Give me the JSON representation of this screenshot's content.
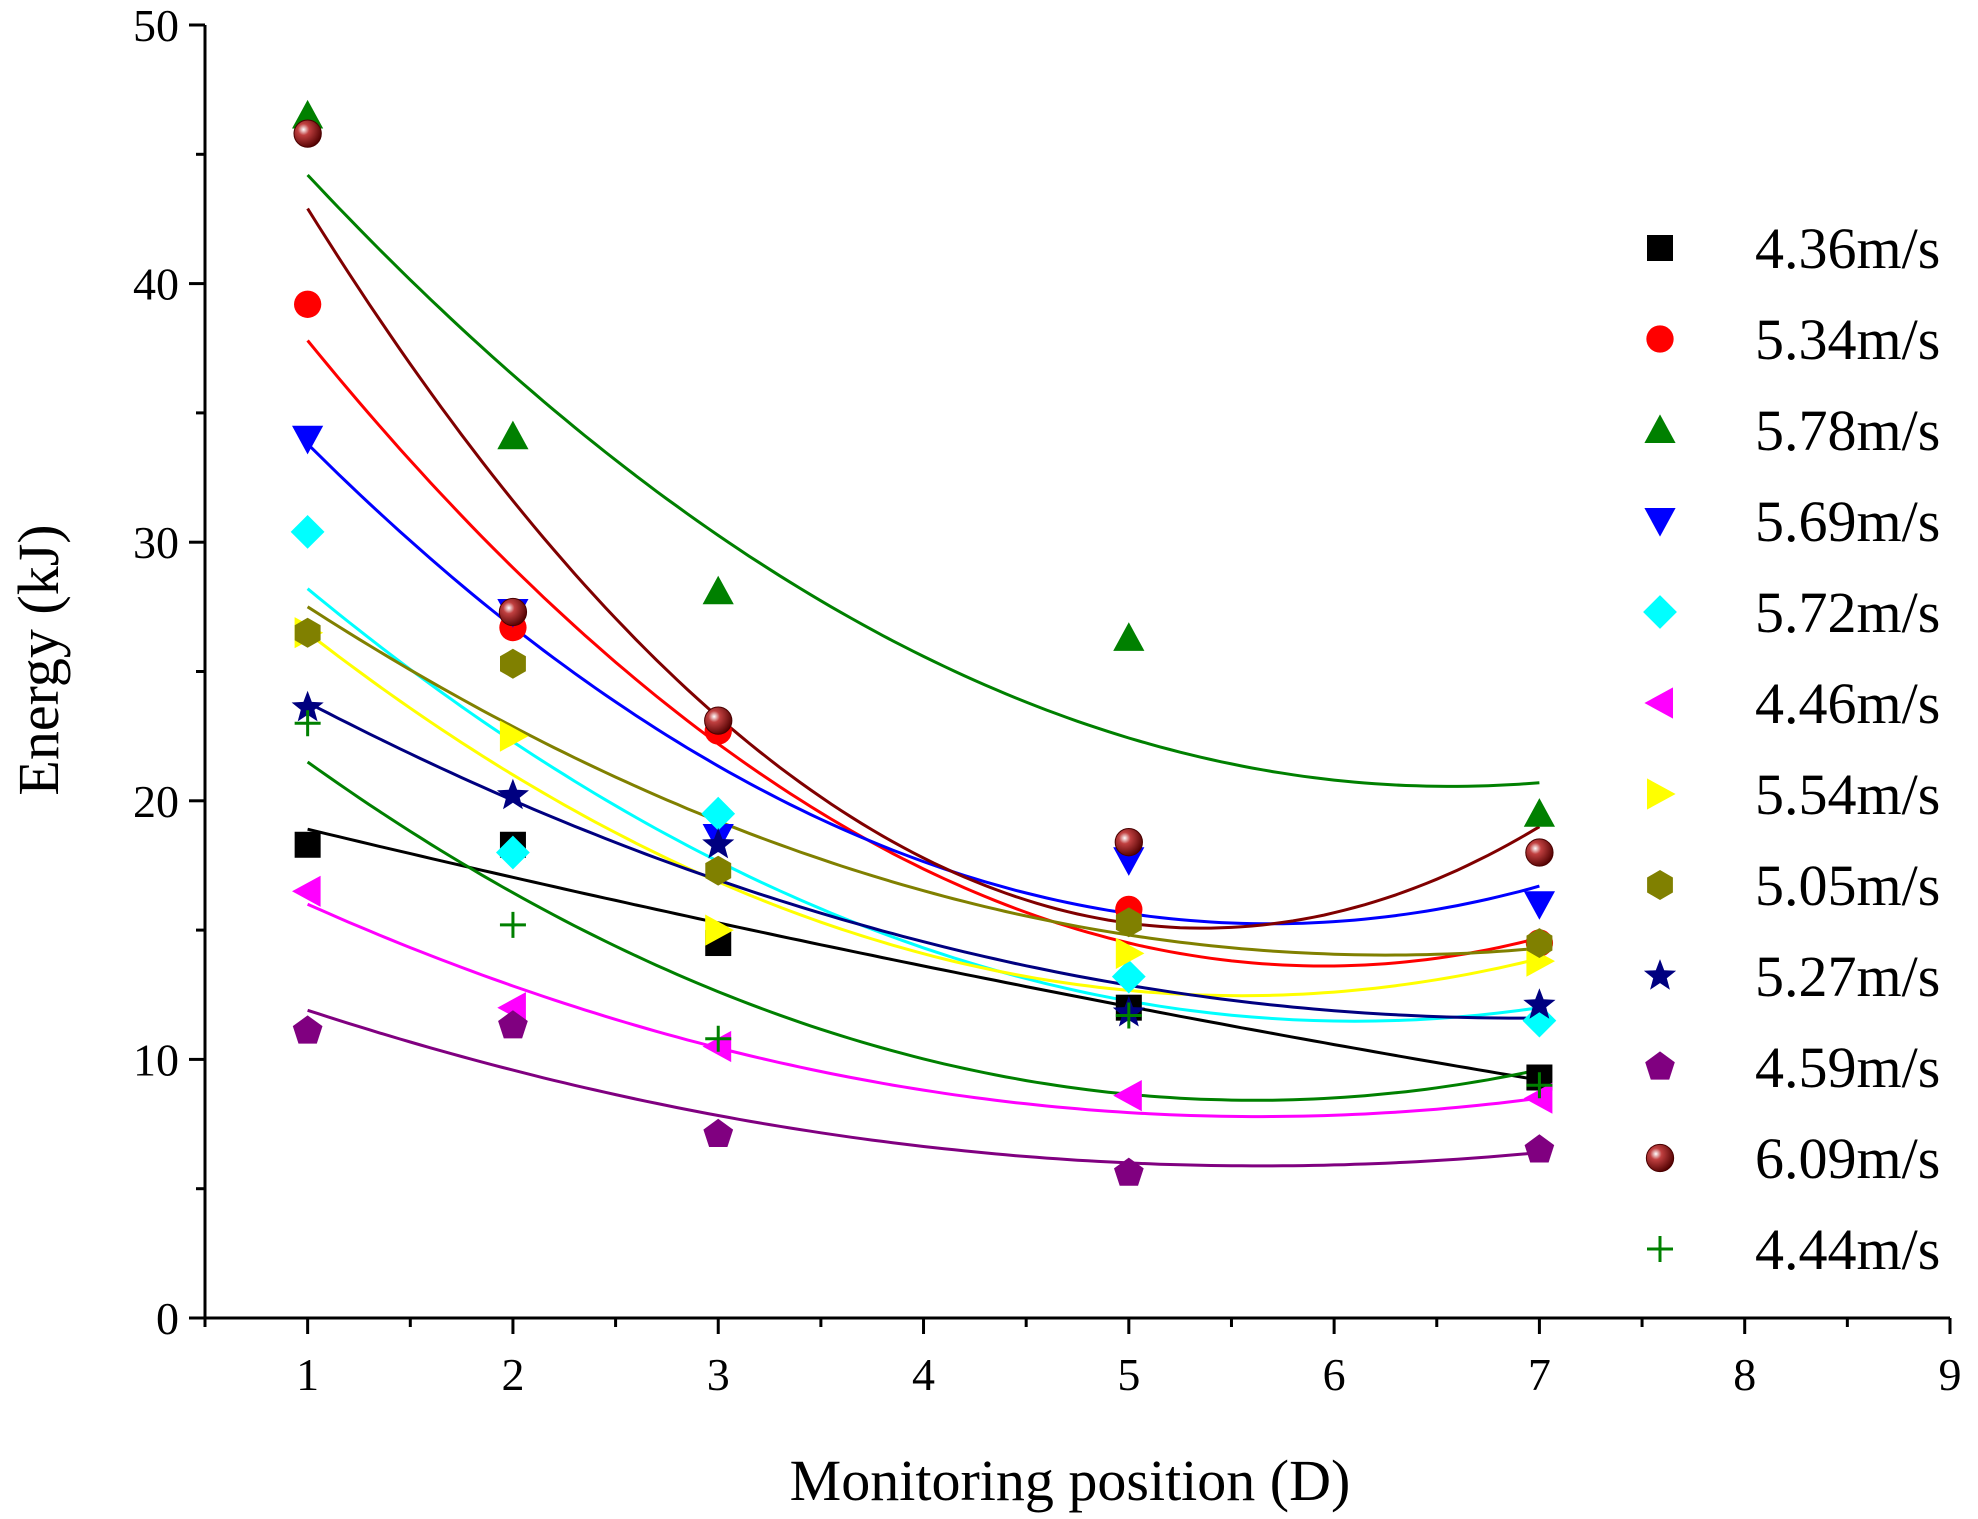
{
  "chart_data": {
    "type": "scatter",
    "title": "",
    "xlabel": "Monitoring position (D)",
    "ylabel": "Energy (kJ)",
    "xlim": [
      0.5,
      9
    ],
    "ylim": [
      0,
      50
    ],
    "x_ticks": [
      1,
      2,
      3,
      4,
      5,
      6,
      7,
      8,
      9
    ],
    "y_ticks": [
      0,
      10,
      20,
      30,
      40,
      50
    ],
    "grid": false,
    "legend_position": "right",
    "fit": "polynomial-2",
    "x": [
      1,
      2,
      3,
      5,
      7
    ],
    "series": [
      {
        "name": "4.36m/s",
        "color": "#000000",
        "marker": "square",
        "values": [
          18.3,
          18.3,
          14.5,
          12.0,
          9.3
        ],
        "fit": [
          18.9,
          9.2
        ]
      },
      {
        "name": "5.34m/s",
        "color": "#ff0000",
        "marker": "circle",
        "values": [
          39.2,
          26.7,
          22.7,
          15.8,
          14.5
        ],
        "fit": [
          37.8,
          14.7
        ]
      },
      {
        "name": "5.78m/s",
        "color": "#008000",
        "marker": "triangle-up",
        "values": [
          46.5,
          34.1,
          28.1,
          26.3,
          19.5
        ],
        "fit": [
          44.2,
          20.7
        ]
      },
      {
        "name": "5.69m/s",
        "color": "#0000ff",
        "marker": "triangle-down",
        "values": [
          34.0,
          27.3,
          18.6,
          17.7,
          16.0
        ],
        "fit": [
          33.8,
          16.7
        ]
      },
      {
        "name": "5.72m/s",
        "color": "#00ffff",
        "marker": "diamond",
        "values": [
          30.4,
          18.0,
          19.5,
          13.2,
          11.5
        ],
        "fit": [
          28.2,
          12.0
        ]
      },
      {
        "name": "4.46m/s",
        "color": "#ff00ff",
        "marker": "triangle-left",
        "values": [
          16.5,
          12.0,
          10.5,
          8.6,
          8.5
        ],
        "fit": [
          16.0,
          8.5
        ]
      },
      {
        "name": "5.54m/s",
        "color": "#ffff00",
        "marker": "triangle-right",
        "values": [
          26.5,
          22.5,
          15.0,
          14.1,
          13.8
        ],
        "fit": [
          26.5,
          13.9
        ]
      },
      {
        "name": "5.05m/s",
        "color": "#808000",
        "marker": "hexagon",
        "values": [
          26.5,
          25.3,
          17.3,
          15.3,
          14.5
        ],
        "fit": [
          27.5,
          14.3
        ]
      },
      {
        "name": "5.27m/s",
        "color": "#000080",
        "marker": "star",
        "values": [
          23.6,
          20.2,
          18.3,
          11.8,
          12.1
        ],
        "fit": [
          23.8,
          11.6
        ]
      },
      {
        "name": "4.59m/s",
        "color": "#800080",
        "marker": "pentagon",
        "values": [
          11.1,
          11.3,
          7.1,
          5.6,
          6.5
        ],
        "fit": [
          11.9,
          6.4
        ]
      },
      {
        "name": "6.09m/s",
        "color": "#800000",
        "marker": "sphere",
        "values": [
          45.8,
          27.3,
          23.1,
          18.4,
          18.0
        ],
        "fit": [
          42.9,
          19.0
        ]
      },
      {
        "name": "4.44m/s",
        "color": "#008000",
        "marker": "plus",
        "values": [
          23.0,
          15.2,
          10.8,
          11.7,
          9.0
        ],
        "fit": [
          21.5,
          9.6
        ]
      }
    ]
  }
}
